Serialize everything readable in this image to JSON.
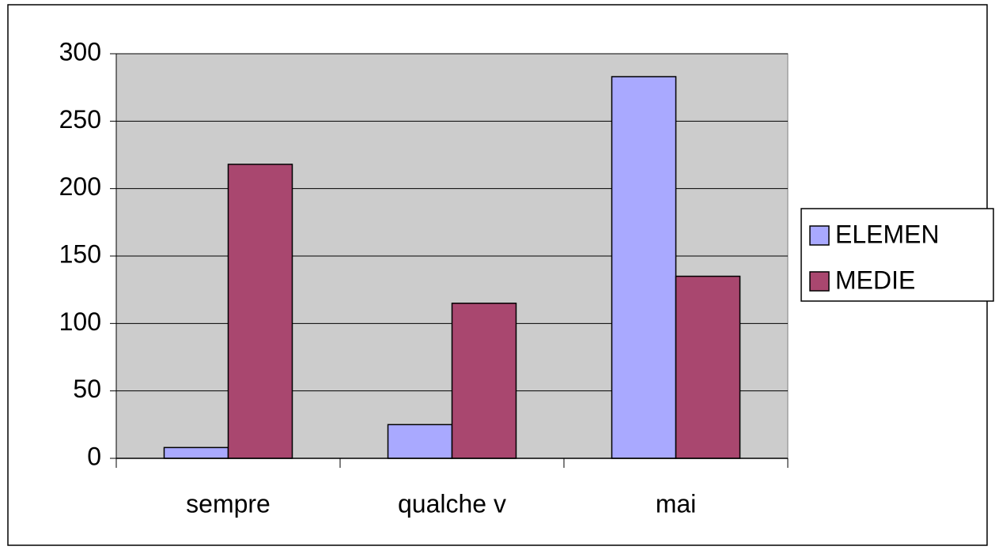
{
  "chart_data": {
    "type": "bar",
    "categories": [
      "sempre",
      "qualche v",
      "mai"
    ],
    "series": [
      {
        "name": "ELEMEN",
        "color": "#a9a9ff",
        "values": [
          8,
          25,
          283
        ]
      },
      {
        "name": "MEDIE",
        "color": "#a9476f",
        "values": [
          218,
          115,
          135
        ]
      }
    ],
    "ylim": [
      0,
      300
    ],
    "yticks": [
      0,
      50,
      100,
      150,
      200,
      250,
      300
    ],
    "grid": true,
    "legend": "right"
  }
}
